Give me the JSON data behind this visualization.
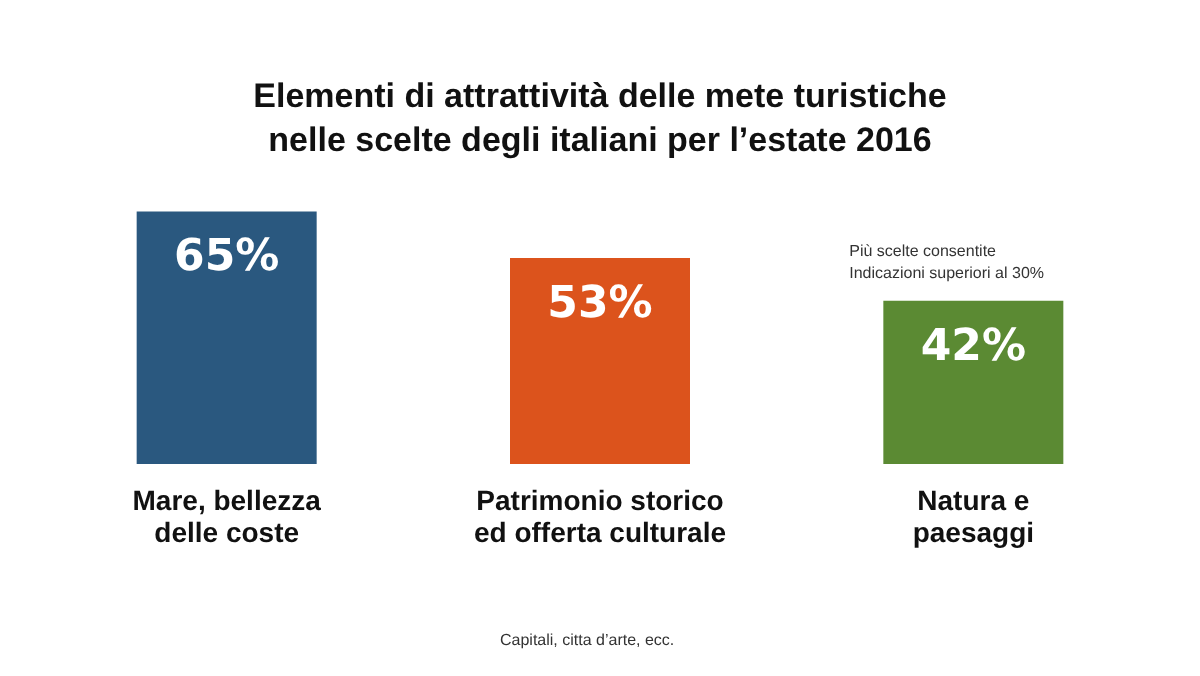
{
  "chart_data": {
    "type": "bar",
    "title": "Elementi di attrattività delle mete turistiche\nnelle scelte degli italiani per l’estate 2016",
    "categories": [
      "Mare, bellezza\ndelle coste",
      "Patrimonio storico\ned offerta culturale",
      "Natura e\npaesaggi"
    ],
    "values": [
      65,
      53,
      42
    ],
    "colors": [
      "#2a587f",
      "#dc531c",
      "#5b8a33"
    ],
    "value_labels": [
      "65%",
      "53%",
      "42%"
    ],
    "annotations": [
      "Più scelte consentite\nIndicazioni superiori al 30%",
      "Capitali, citta d’arte, ecc."
    ]
  }
}
